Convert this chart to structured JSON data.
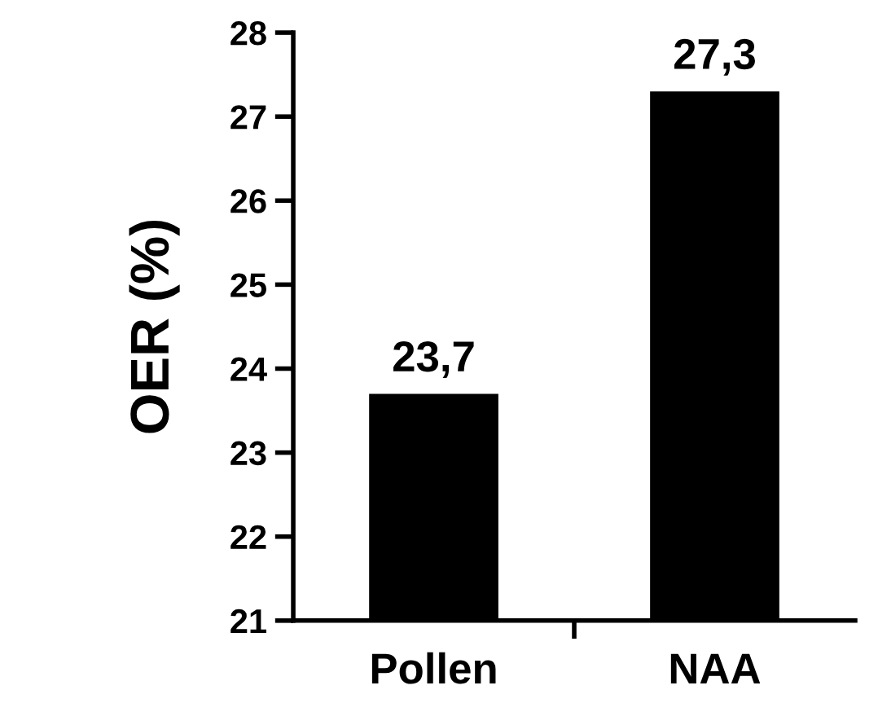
{
  "chart_data": {
    "type": "bar",
    "ylabel": "OER (%)",
    "categories": [
      "Pollen",
      "NAA"
    ],
    "values": [
      23.7,
      27.3
    ],
    "color": "#000000",
    "value_labels": [
      "23,7",
      "27,3"
    ],
    "ylim": [
      21,
      28
    ],
    "yticks": [
      21,
      22,
      23,
      24,
      25,
      26,
      27,
      28
    ],
    "grid": false,
    "legend": false
  }
}
